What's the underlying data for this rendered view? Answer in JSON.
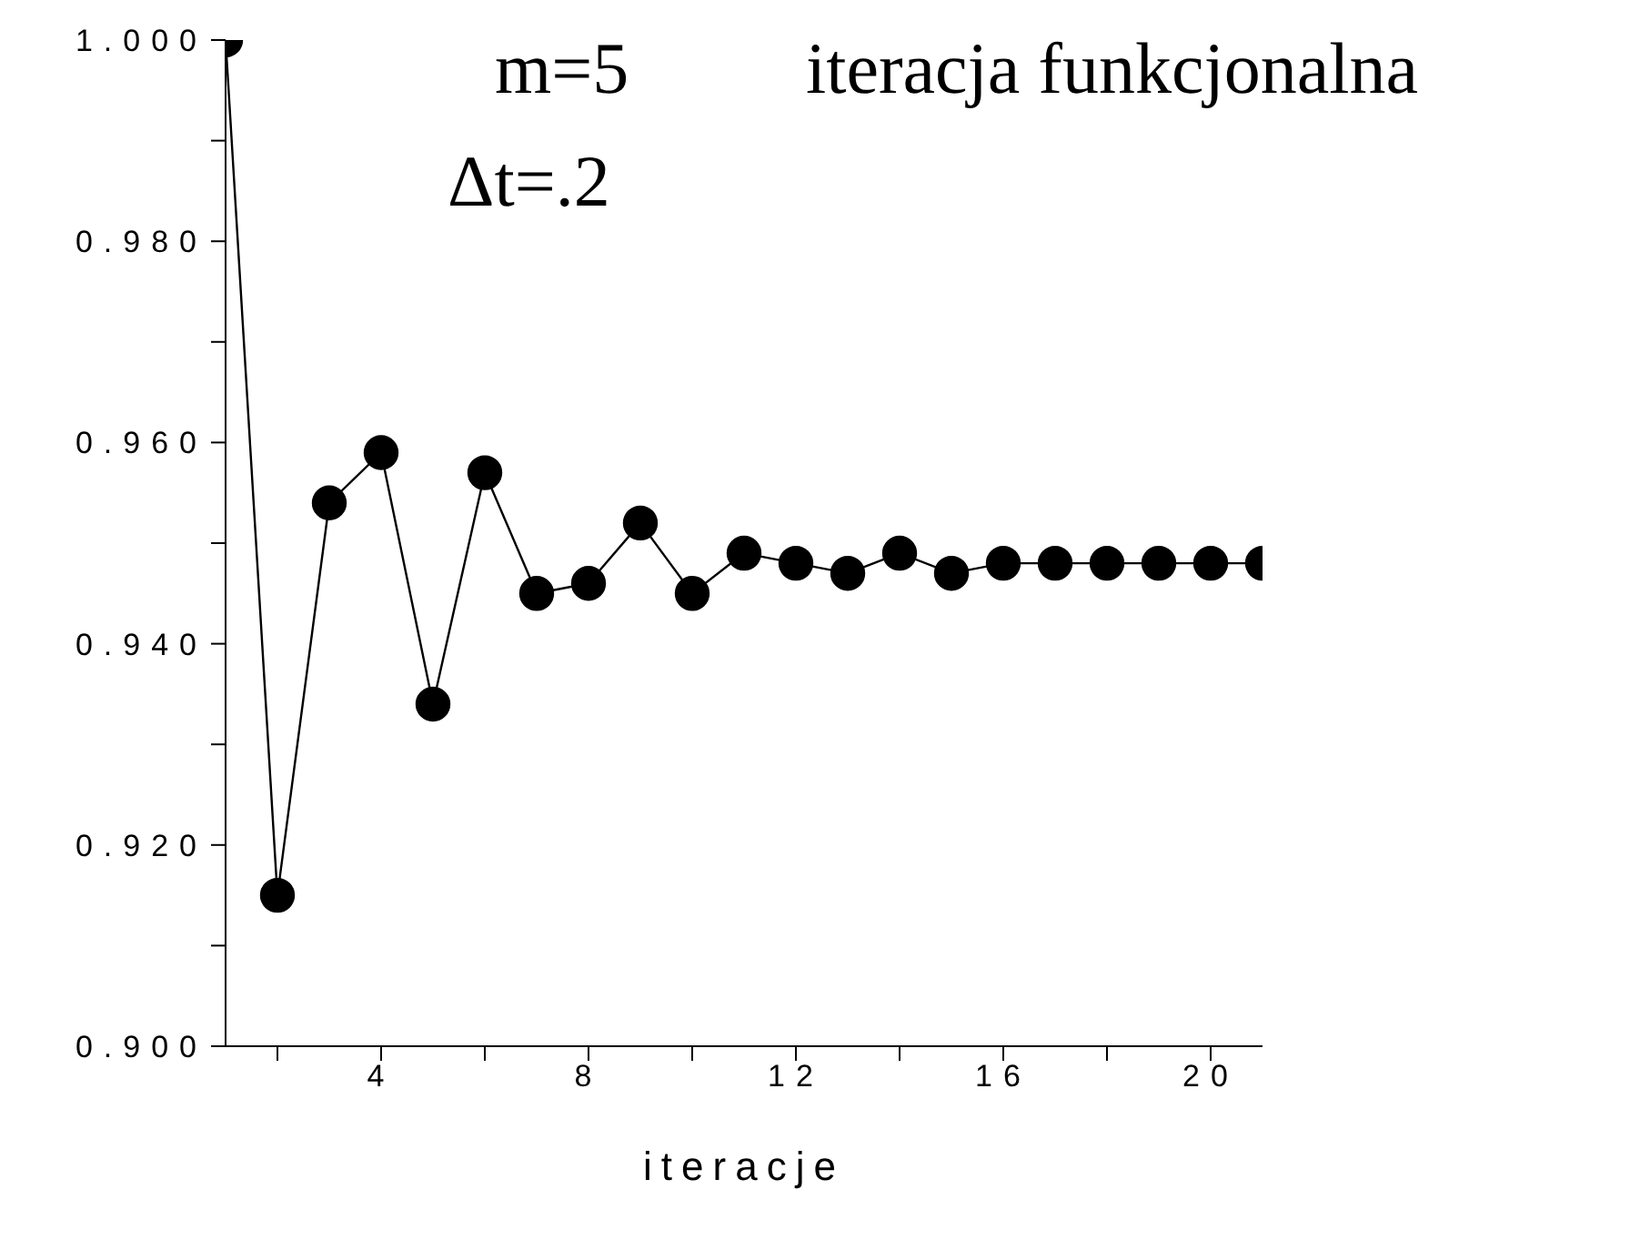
{
  "chart_data": {
    "type": "line",
    "xlabel": "iteracje",
    "annotations": [
      "m=5",
      "iteracja funkcjonalna",
      "Δt=.2"
    ],
    "x": [
      1,
      2,
      3,
      4,
      5,
      6,
      7,
      8,
      9,
      10,
      11,
      12,
      13,
      14,
      15,
      16,
      17,
      18,
      19,
      20,
      21
    ],
    "series": [
      {
        "color": "#000000",
        "values": [
          1.0,
          0.915,
          0.954,
          0.959,
          0.934,
          0.957,
          0.945,
          0.946,
          0.952,
          0.945,
          0.949,
          0.948,
          0.947,
          0.949,
          0.947,
          0.948,
          0.948,
          0.948,
          0.948,
          0.948,
          0.948
        ]
      }
    ],
    "marker": "circle",
    "line_style": "solid",
    "grid": false,
    "legend": false,
    "xlim": [
      1,
      21
    ],
    "xticks": [
      {
        "value": 2,
        "label": null
      },
      4,
      {
        "value": 6,
        "label": null
      },
      8,
      {
        "value": 10,
        "label": null
      },
      12,
      {
        "value": 14,
        "label": null
      },
      16,
      {
        "value": 18,
        "label": null
      },
      20
    ],
    "ylim": [
      0.9,
      1.0
    ],
    "yticks": [
      {
        "value": 0.9,
        "label": "0.900"
      },
      {
        "value": 0.91,
        "label": null
      },
      {
        "value": 0.92,
        "label": "0.920"
      },
      {
        "value": 0.93,
        "label": null
      },
      {
        "value": 0.94,
        "label": "0.940"
      },
      {
        "value": 0.95,
        "label": null
      },
      {
        "value": 0.96,
        "label": "0.960"
      },
      {
        "value": 0.97,
        "label": null
      },
      {
        "value": 0.98,
        "label": "0.980"
      },
      {
        "value": 0.99,
        "label": null
      },
      {
        "value": 1.0,
        "label": "1.000"
      }
    ]
  }
}
